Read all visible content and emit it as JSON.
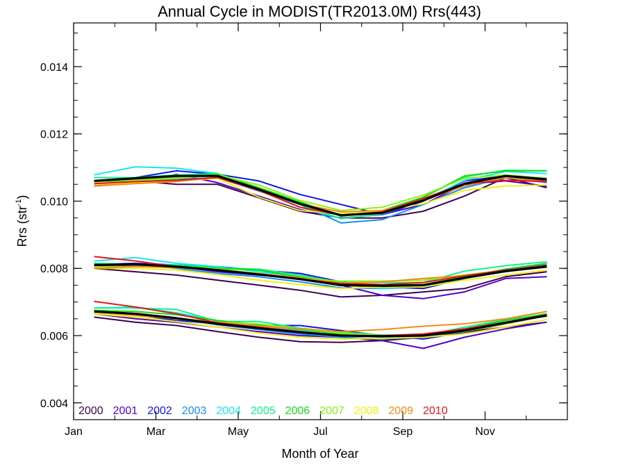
{
  "chart_data": {
    "type": "line",
    "title": "Annual Cycle in MODIST(TR2013.0M) Rrs(443)",
    "xlabel": "Month of Year",
    "ylabel": "Rrs (str",
    "ylabel_sup": "-1",
    "ylabel_close": ")",
    "xlim": [
      0,
      12
    ],
    "ylim": [
      0.0035,
      0.0153
    ],
    "x_ticks": [
      {
        "value": 0,
        "label": "Jan"
      },
      {
        "value": 2,
        "label": "Mar"
      },
      {
        "value": 4,
        "label": "May"
      },
      {
        "value": 6,
        "label": "Jul"
      },
      {
        "value": 8,
        "label": "Sep"
      },
      {
        "value": 10,
        "label": "Nov"
      }
    ],
    "y_ticks": [
      {
        "value": 0.004,
        "label": "0.004"
      },
      {
        "value": 0.006,
        "label": "0.006"
      },
      {
        "value": 0.008,
        "label": "0.008"
      },
      {
        "value": 0.01,
        "label": "0.010"
      },
      {
        "value": 0.012,
        "label": "0.012"
      },
      {
        "value": 0.014,
        "label": "0.014"
      }
    ],
    "grid": false,
    "legend_position": "bottom-left",
    "x": [
      0.5,
      1.5,
      2.5,
      3.5,
      4.5,
      5.5,
      6.5,
      7.5,
      8.5,
      9.5,
      10.5,
      11.5
    ],
    "groups": [
      "upper",
      "middle",
      "lower"
    ],
    "series": [
      {
        "name": "2000",
        "color": "#3c0050",
        "width": 2,
        "upper": [
          0.0105,
          0.0106,
          0.0105,
          0.0105,
          0.0101,
          0.0097,
          0.0095,
          0.0095,
          0.0097,
          0.01015,
          0.0107,
          0.0104
        ],
        "middle": [
          0.008,
          0.0079,
          0.0078,
          0.00765,
          0.0075,
          0.00735,
          0.00715,
          0.0072,
          0.0073,
          0.0074,
          0.00775,
          0.0079
        ],
        "lower": [
          0.00655,
          0.0064,
          0.0063,
          0.00612,
          0.00595,
          0.00582,
          0.0058,
          0.00585,
          0.00595,
          0.0061,
          0.00625,
          0.0064
        ]
      },
      {
        "name": "2001",
        "color": "#5000c8",
        "width": 2,
        "upper": [
          0.01045,
          0.01055,
          0.0108,
          0.01055,
          0.01015,
          0.00975,
          0.0095,
          0.0096,
          0.0099,
          0.0105,
          0.0106,
          0.01045
        ],
        "middle": [
          0.00805,
          0.0081,
          0.00805,
          0.0079,
          0.0078,
          0.0077,
          0.0075,
          0.0072,
          0.0071,
          0.0073,
          0.0077,
          0.00775
        ],
        "lower": [
          0.00665,
          0.0065,
          0.0064,
          0.00625,
          0.00612,
          0.006,
          0.00595,
          0.00585,
          0.00562,
          0.00595,
          0.0062,
          0.0064
        ]
      },
      {
        "name": "2002",
        "color": "#0a14e6",
        "width": 2,
        "upper": [
          0.0106,
          0.0107,
          0.0109,
          0.0108,
          0.0106,
          0.0102,
          0.0099,
          0.0096,
          0.01,
          0.0106,
          0.01075,
          0.0106
        ],
        "middle": [
          0.00812,
          0.00815,
          0.0081,
          0.00805,
          0.00795,
          0.00785,
          0.0076,
          0.00745,
          0.0074,
          0.0077,
          0.00795,
          0.0081
        ],
        "lower": [
          0.0067,
          0.00662,
          0.00645,
          0.00635,
          0.0063,
          0.0063,
          0.00615,
          0.006,
          0.0059,
          0.0061,
          0.00635,
          0.0066
        ]
      },
      {
        "name": "2003",
        "color": "#148cf0",
        "width": 2,
        "upper": [
          0.01058,
          0.0106,
          0.01065,
          0.0107,
          0.0103,
          0.0099,
          0.00935,
          0.00945,
          0.0099,
          0.0104,
          0.0107,
          0.01055
        ],
        "middle": [
          0.0081,
          0.00812,
          0.008,
          0.00785,
          0.00775,
          0.0076,
          0.00742,
          0.0074,
          0.00745,
          0.0077,
          0.0079,
          0.00805
        ],
        "lower": [
          0.00672,
          0.00665,
          0.0065,
          0.00632,
          0.00618,
          0.00605,
          0.00595,
          0.0059,
          0.00595,
          0.00615,
          0.0064,
          0.00658
        ]
      },
      {
        "name": "2004",
        "color": "#14e6f0",
        "width": 2,
        "upper": [
          0.01078,
          0.01102,
          0.01098,
          0.01082,
          0.01032,
          0.00982,
          0.00948,
          0.00962,
          0.01002,
          0.01062,
          0.01088,
          0.01082
        ],
        "middle": [
          0.00822,
          0.00832,
          0.00815,
          0.00805,
          0.0079,
          0.00775,
          0.00752,
          0.0074,
          0.0075,
          0.00772,
          0.00792,
          0.00808
        ],
        "lower": [
          0.00682,
          0.00685,
          0.00668,
          0.00645,
          0.0063,
          0.00615,
          0.00602,
          0.00595,
          0.006,
          0.0062,
          0.00645,
          0.00665
        ]
      },
      {
        "name": "2005",
        "color": "#14f08c",
        "width": 2,
        "upper": [
          0.0107,
          0.0107,
          0.01078,
          0.01082,
          0.0104,
          0.0099,
          0.00948,
          0.00962,
          0.01012,
          0.01072,
          0.01092,
          0.0109
        ],
        "middle": [
          0.00815,
          0.00812,
          0.0081,
          0.00802,
          0.00798,
          0.0078,
          0.00758,
          0.00758,
          0.00758,
          0.00792,
          0.00808,
          0.0082
        ],
        "lower": [
          0.00682,
          0.00682,
          0.00678,
          0.00642,
          0.00642,
          0.00622,
          0.0061,
          0.00602,
          0.006,
          0.00625,
          0.00648,
          0.00672
        ]
      },
      {
        "name": "2006",
        "color": "#14dc14",
        "width": 2,
        "upper": [
          0.0106,
          0.01065,
          0.01072,
          0.0108,
          0.0104,
          0.00998,
          0.00955,
          0.00972,
          0.01012,
          0.01075,
          0.0109,
          0.0109
        ],
        "middle": [
          0.00812,
          0.00812,
          0.00808,
          0.008,
          0.00795,
          0.00775,
          0.00755,
          0.0075,
          0.00752,
          0.00775,
          0.00798,
          0.00815
        ],
        "lower": [
          0.00675,
          0.00672,
          0.00662,
          0.00645,
          0.00632,
          0.00618,
          0.00605,
          0.00598,
          0.006,
          0.0062,
          0.00645,
          0.00665
        ]
      },
      {
        "name": "2007",
        "color": "#8cf014",
        "width": 2,
        "upper": [
          0.01058,
          0.01062,
          0.01068,
          0.01078,
          0.01048,
          0.01002,
          0.00972,
          0.00982,
          0.01018,
          0.01068,
          0.01078,
          0.01068
        ],
        "middle": [
          0.00805,
          0.00805,
          0.00805,
          0.00798,
          0.00785,
          0.0077,
          0.00762,
          0.00762,
          0.00765,
          0.0078,
          0.00795,
          0.00808
        ],
        "lower": [
          0.00668,
          0.00662,
          0.00652,
          0.0064,
          0.00635,
          0.0062,
          0.00608,
          0.006,
          0.006,
          0.00612,
          0.00635,
          0.0066
        ]
      },
      {
        "name": "2008",
        "color": "#f0f014",
        "width": 2,
        "upper": [
          0.0105,
          0.01055,
          0.0106,
          0.01068,
          0.01012,
          0.00972,
          0.00962,
          0.00972,
          0.00992,
          0.01032,
          0.01045,
          0.01048
        ],
        "middle": [
          0.008,
          0.008,
          0.00795,
          0.00782,
          0.00765,
          0.00752,
          0.0074,
          0.00745,
          0.00745,
          0.00765,
          0.0078,
          0.00795
        ],
        "lower": [
          0.00665,
          0.00655,
          0.00642,
          0.00625,
          0.00608,
          0.00595,
          0.0059,
          0.00592,
          0.00595,
          0.00605,
          0.00625,
          0.00648
        ]
      },
      {
        "name": "2009",
        "color": "#f08c14",
        "width": 2,
        "upper": [
          0.01045,
          0.01052,
          0.01058,
          0.01072,
          0.01035,
          0.00992,
          0.00968,
          0.00972,
          0.01002,
          0.01045,
          0.0107,
          0.01058
        ],
        "middle": [
          0.008,
          0.00805,
          0.00802,
          0.00795,
          0.00785,
          0.00772,
          0.00755,
          0.0076,
          0.0077,
          0.00778,
          0.00795,
          0.00805
        ],
        "lower": [
          0.0067,
          0.0066,
          0.0065,
          0.0064,
          0.00628,
          0.0062,
          0.00612,
          0.00618,
          0.00628,
          0.00635,
          0.0065,
          0.00672
        ]
      },
      {
        "name": "2010",
        "color": "#e61414",
        "width": 2,
        "upper": [
          0.01052,
          0.01058,
          0.01062,
          0.0107,
          0.01032,
          0.00982,
          0.00958,
          0.00968,
          0.01008,
          0.01052,
          0.01062,
          0.01058
        ],
        "middle": [
          0.00835,
          0.00822,
          0.00805,
          0.00795,
          0.00782,
          0.00768,
          0.00755,
          0.00752,
          0.00758,
          0.00778,
          0.00795,
          0.00808
        ],
        "lower": [
          0.00702,
          0.00685,
          0.00665,
          0.00638,
          0.00625,
          0.00612,
          0.006,
          0.006,
          0.00605,
          0.0062,
          0.0064,
          0.00662
        ]
      },
      {
        "name": "",
        "color": "#000000",
        "width": 3.2,
        "in_legend": false,
        "upper": [
          0.0106,
          0.01068,
          0.01075,
          0.01075,
          0.01035,
          0.00992,
          0.00958,
          0.00965,
          0.01002,
          0.01052,
          0.01075,
          0.01065
        ],
        "middle": [
          0.0081,
          0.00812,
          0.00805,
          0.00795,
          0.00782,
          0.00768,
          0.0075,
          0.00748,
          0.0075,
          0.00772,
          0.00792,
          0.00805
        ],
        "lower": [
          0.00672,
          0.00665,
          0.00652,
          0.00635,
          0.00622,
          0.0061,
          0.006,
          0.00598,
          0.006,
          0.00615,
          0.00638,
          0.0066
        ]
      }
    ]
  }
}
